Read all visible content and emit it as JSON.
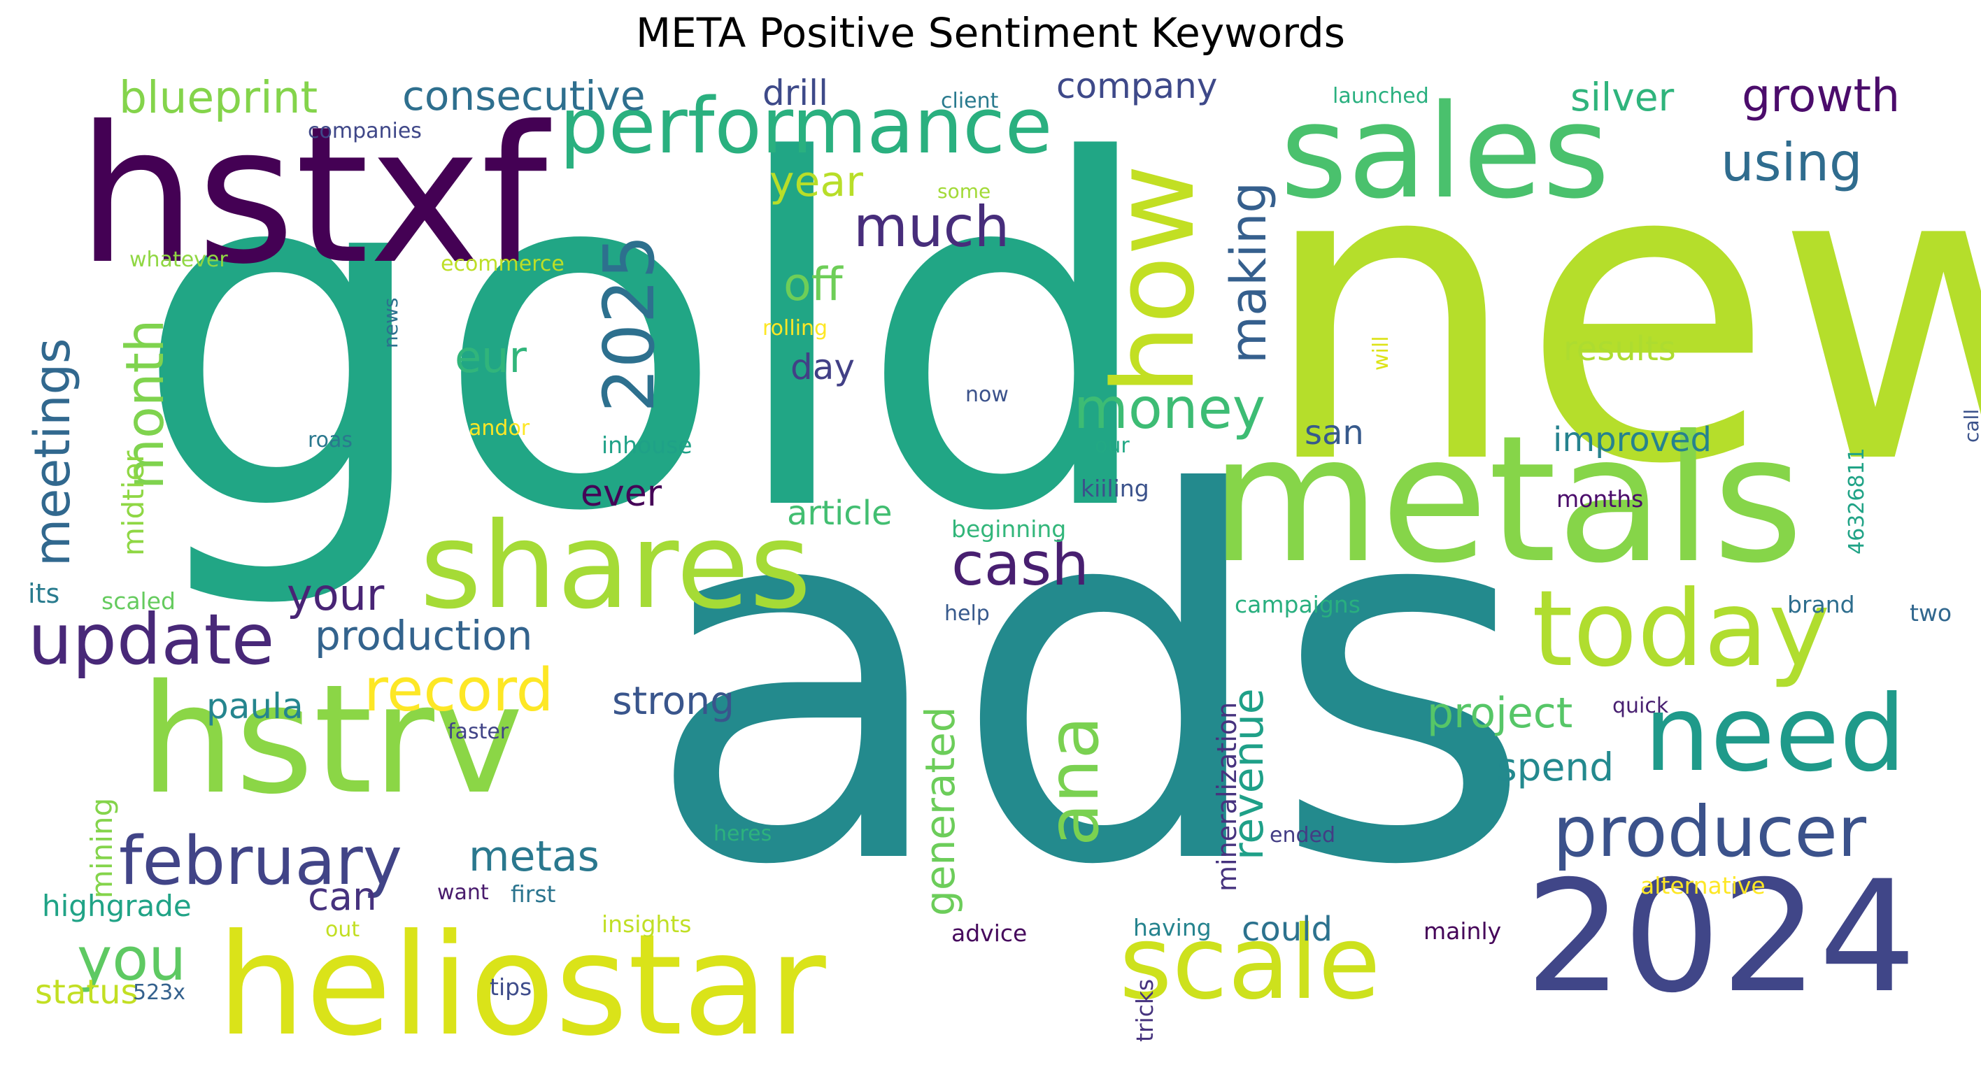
{
  "title": "META Positive Sentiment Keywords",
  "words": [
    {
      "text": "gold",
      "color": "#21a685",
      "vertical": false
    },
    {
      "text": "new",
      "color": "#b5de2b",
      "vertical": false
    },
    {
      "text": "ads",
      "color": "#238a8d",
      "vertical": false
    },
    {
      "text": "metals",
      "color": "#86d549",
      "vertical": false
    },
    {
      "text": "hstxf",
      "color": "#440154",
      "vertical": false
    },
    {
      "text": "sales",
      "color": "#4ac16d",
      "vertical": false
    },
    {
      "text": "shares",
      "color": "#a5db36",
      "vertical": false
    },
    {
      "text": "heliostar",
      "color": "#dae319",
      "vertical": false
    },
    {
      "text": "hstrv",
      "color": "#8bd646",
      "vertical": false
    },
    {
      "text": "2024",
      "color": "#404688",
      "vertical": false
    },
    {
      "text": "scale",
      "color": "#cde11d",
      "vertical": false
    },
    {
      "text": "how",
      "color": "#c2df23",
      "vertical": true
    },
    {
      "text": "today",
      "color": "#b0dd2f",
      "vertical": false
    },
    {
      "text": "need",
      "color": "#1f9a8a",
      "vertical": false
    },
    {
      "text": "performance",
      "color": "#2ab07f",
      "vertical": false
    },
    {
      "text": "producer",
      "color": "#3b528b",
      "vertical": false
    },
    {
      "text": "ana",
      "color": "#7ad151",
      "vertical": true
    },
    {
      "text": "2025",
      "color": "#2d708e",
      "vertical": true
    },
    {
      "text": "update",
      "color": "#482878",
      "vertical": false
    },
    {
      "text": "february",
      "color": "#414487",
      "vertical": false
    },
    {
      "text": "meetings",
      "color": "#31688e",
      "vertical": true
    },
    {
      "text": "cash",
      "color": "#481f70",
      "vertical": false
    },
    {
      "text": "record",
      "color": "#fde725",
      "vertical": false
    },
    {
      "text": "money",
      "color": "#3dbc74",
      "vertical": false
    },
    {
      "text": "much",
      "color": "#472d7b",
      "vertical": false
    },
    {
      "text": "using",
      "color": "#2f6c8e",
      "vertical": false
    },
    {
      "text": "making",
      "color": "#355f8d",
      "vertical": true
    },
    {
      "text": "month",
      "color": "#7fd34e",
      "vertical": true
    },
    {
      "text": "you",
      "color": "#5ec962",
      "vertical": false
    },
    {
      "text": "blueprint",
      "color": "#84d44b",
      "vertical": false
    },
    {
      "text": "consecutive",
      "color": "#2e6f8e",
      "vertical": false
    },
    {
      "text": "growth",
      "color": "#4b0c6b",
      "vertical": false
    },
    {
      "text": "silver",
      "color": "#2fb47c",
      "vertical": false
    },
    {
      "text": "company",
      "color": "#3e4989",
      "vertical": false
    },
    {
      "text": "year",
      "color": "#b8de29",
      "vertical": false
    },
    {
      "text": "off",
      "color": "#6ece58",
      "vertical": false
    },
    {
      "text": "eur",
      "color": "#31b57b",
      "vertical": false
    },
    {
      "text": "your",
      "color": "#482475",
      "vertical": false
    },
    {
      "text": "production",
      "color": "#33638d",
      "vertical": false
    },
    {
      "text": "revenue",
      "color": "#1fa088",
      "vertical": true
    },
    {
      "text": "metas",
      "color": "#2a788e",
      "vertical": false
    },
    {
      "text": "strong",
      "color": "#39558c",
      "vertical": false
    },
    {
      "text": "project",
      "color": "#56c667",
      "vertical": false
    },
    {
      "text": "spend",
      "color": "#23898e",
      "vertical": false
    },
    {
      "text": "generated",
      "color": "#6ccd5a",
      "vertical": true
    },
    {
      "text": "paula",
      "color": "#25858e",
      "vertical": false
    },
    {
      "text": "can",
      "color": "#46327e",
      "vertical": false
    },
    {
      "text": "day",
      "color": "#424086",
      "vertical": false
    },
    {
      "text": "ever",
      "color": "#450457",
      "vertical": false
    },
    {
      "text": "drill",
      "color": "#3e4a89",
      "vertical": false
    },
    {
      "text": "san",
      "color": "#375a8c",
      "vertical": false
    },
    {
      "text": "improved",
      "color": "#26828e",
      "vertical": false
    },
    {
      "text": "results",
      "color": "#addc30",
      "vertical": false
    },
    {
      "text": "article",
      "color": "#42be71",
      "vertical": false
    },
    {
      "text": "midtier",
      "color": "#8fd744",
      "vertical": true
    },
    {
      "text": "mining",
      "color": "#84d44b",
      "vertical": true
    },
    {
      "text": "mineralization",
      "color": "#46337e",
      "vertical": true
    },
    {
      "text": "could",
      "color": "#2c728e",
      "vertical": false
    },
    {
      "text": "highgrade",
      "color": "#20a386",
      "vertical": false
    },
    {
      "text": "status",
      "color": "#c2df23",
      "vertical": false
    },
    {
      "text": "its",
      "color": "#297b8e",
      "vertical": false
    },
    {
      "text": "scaled",
      "color": "#65cb5e",
      "vertical": false
    },
    {
      "text": "campaigns",
      "color": "#29af7f",
      "vertical": false
    },
    {
      "text": "beginning",
      "color": "#32b67a",
      "vertical": false
    },
    {
      "text": "kiiling",
      "color": "#3b528b",
      "vertical": false
    },
    {
      "text": "months",
      "color": "#4b0c6b",
      "vertical": false
    },
    {
      "text": "brand",
      "color": "#2e6e8e",
      "vertical": false
    },
    {
      "text": "two",
      "color": "#31678e",
      "vertical": false
    },
    {
      "text": "quick",
      "color": "#482071",
      "vertical": false
    },
    {
      "text": "ended",
      "color": "#433d84",
      "vertical": false
    },
    {
      "text": "alternative",
      "color": "#fde725",
      "vertical": false
    },
    {
      "text": "mainly",
      "color": "#450559",
      "vertical": false
    },
    {
      "text": "having",
      "color": "#25838e",
      "vertical": false
    },
    {
      "text": "tricks",
      "color": "#46337e",
      "vertical": true
    },
    {
      "text": "advice",
      "color": "#460a5d",
      "vertical": false
    },
    {
      "text": "help",
      "color": "#37598c",
      "vertical": false
    },
    {
      "text": "first",
      "color": "#2b748e",
      "vertical": false
    },
    {
      "text": "want",
      "color": "#481a6c",
      "vertical": false
    },
    {
      "text": "insights",
      "color": "#c0df25",
      "vertical": false
    },
    {
      "text": "heres",
      "color": "#2db27d",
      "vertical": false
    },
    {
      "text": "faster",
      "color": "#414487",
      "vertical": false
    },
    {
      "text": "tips",
      "color": "#3e4c8a",
      "vertical": false
    },
    {
      "text": "out",
      "color": "#c2df23",
      "vertical": false
    },
    {
      "text": "523x",
      "color": "#34618d",
      "vertical": false
    },
    {
      "text": "roas",
      "color": "#2a788e",
      "vertical": false
    },
    {
      "text": "andor",
      "color": "#fde725",
      "vertical": false
    },
    {
      "text": "inhouse",
      "color": "#1fa187",
      "vertical": false
    },
    {
      "text": "now",
      "color": "#3b528b",
      "vertical": false
    },
    {
      "text": "our",
      "color": "#22a884",
      "vertical": false
    },
    {
      "text": "rolling",
      "color": "#fde725",
      "vertical": false
    },
    {
      "text": "news",
      "color": "#2c718e",
      "vertical": true
    },
    {
      "text": "ecommerce",
      "color": "#bddf26",
      "vertical": false
    },
    {
      "text": "whatever",
      "color": "#90d743",
      "vertical": false
    },
    {
      "text": "companies",
      "color": "#3f4788",
      "vertical": false
    },
    {
      "text": "client",
      "color": "#297a8e",
      "vertical": false
    },
    {
      "text": "some",
      "color": "#a2da37",
      "vertical": false
    },
    {
      "text": "launched",
      "color": "#2ab07f",
      "vertical": false
    },
    {
      "text": "will",
      "color": "#dde318",
      "vertical": true
    },
    {
      "text": "46326811",
      "color": "#20a386",
      "vertical": true
    },
    {
      "text": "call",
      "color": "#3b528b",
      "vertical": true
    }
  ]
}
